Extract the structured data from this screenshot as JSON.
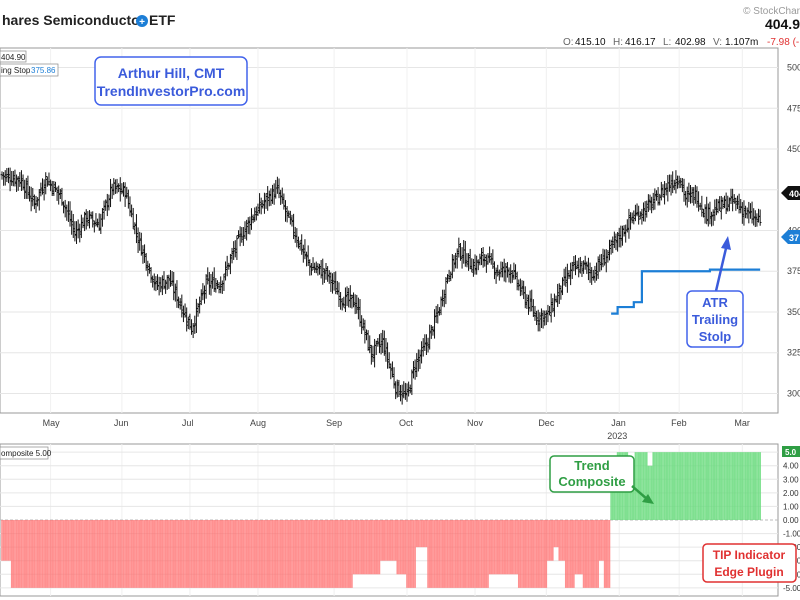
{
  "header": {
    "title": "hares Semiconductor ETF",
    "last_price": "404.9",
    "watermark": "© StockChar",
    "ohlc": {
      "o_label": "O:",
      "o": "415.10",
      "h_label": "H:",
      "h": "416.17",
      "l_label": "L:",
      "l": "402.98",
      "v_label": "V:",
      "v": "1.107m",
      "change": "-7.98 (-1"
    }
  },
  "colors": {
    "bars": "#111111",
    "trailing_stop": "#1c7ed6",
    "positive": "#69db7c",
    "negative": "#ff6b6b",
    "annotation_blue": "#3b5bdb",
    "annotation_green": "#2f9e44",
    "annotation_red": "#e03131",
    "change": "#e03131"
  },
  "legend": {
    "price_label": "404.90",
    "stop_label": "ing Stop",
    "stop_value": "375.86",
    "composite_label": "omposite 5.00"
  },
  "right_tags": {
    "price": "404",
    "stop": "37",
    "composite": "5.0"
  },
  "annotations": {
    "author_line1": "Arthur Hill, CMT",
    "author_line2": "TrendInvestorPro.com",
    "atr_line1": "ATR",
    "atr_line2": "Trailing",
    "atr_line3": "Stolp",
    "trend_line1": "Trend",
    "trend_line2": "Composite",
    "tip_line1": "TIP Indicator",
    "tip_line2": "Edge Plugin"
  },
  "chart_data": [
    {
      "type": "ohlc",
      "title": "hares Semiconductor ETF",
      "x_ticks": [
        "May",
        "Jun",
        "Jul",
        "Aug",
        "Sep",
        "Oct",
        "Nov",
        "Dec",
        "Jan",
        "Feb",
        "Mar"
      ],
      "year_label": "2023",
      "y_ticks": [
        300,
        325,
        350,
        375,
        400,
        425,
        450,
        475,
        500
      ],
      "y_tick_labels": [
        "300",
        "325",
        "350",
        "375",
        "400",
        "425",
        "450",
        "475",
        "500"
      ],
      "ylim": [
        288,
        512
      ],
      "grid": true,
      "close_path": [
        [
          0,
          434
        ],
        [
          12,
          431
        ],
        [
          20,
          416
        ],
        [
          27,
          432
        ],
        [
          37,
          420
        ],
        [
          45,
          398
        ],
        [
          52,
          408
        ],
        [
          60,
          404
        ],
        [
          68,
          426
        ],
        [
          76,
          424
        ],
        [
          84,
          395
        ],
        [
          95,
          366
        ],
        [
          103,
          370
        ],
        [
          117,
          340
        ],
        [
          126,
          367
        ],
        [
          135,
          368
        ],
        [
          146,
          394
        ],
        [
          154,
          408
        ],
        [
          164,
          420
        ],
        [
          170,
          425
        ],
        [
          176,
          409
        ],
        [
          190,
          378
        ],
        [
          200,
          374
        ],
        [
          210,
          358
        ],
        [
          218,
          356
        ],
        [
          228,
          324
        ],
        [
          235,
          332
        ],
        [
          243,
          304
        ],
        [
          250,
          298
        ],
        [
          255,
          318
        ],
        [
          262,
          330
        ],
        [
          270,
          352
        ],
        [
          275,
          372
        ],
        [
          282,
          388
        ],
        [
          291,
          378
        ],
        [
          298,
          384
        ],
        [
          306,
          375
        ],
        [
          314,
          376
        ],
        [
          322,
          360
        ],
        [
          330,
          347
        ],
        [
          337,
          348
        ],
        [
          344,
          363
        ],
        [
          352,
          376
        ],
        [
          360,
          378
        ],
        [
          364,
          373
        ],
        [
          372,
          383
        ],
        [
          381,
          396
        ],
        [
          389,
          408
        ],
        [
          397,
          413
        ],
        [
          404,
          419
        ],
        [
          411,
          428
        ],
        [
          418,
          433
        ],
        [
          422,
          420
        ],
        [
          428,
          422
        ],
        [
          435,
          410
        ],
        [
          444,
          415
        ],
        [
          452,
          418
        ],
        [
          460,
          410
        ],
        [
          468,
          405
        ]
      ],
      "trailing_stop": [
        [
          376,
          349
        ],
        [
          380,
          353
        ],
        [
          384,
          353
        ],
        [
          390,
          356
        ],
        [
          395,
          375
        ],
        [
          403,
          375
        ],
        [
          420,
          375
        ],
        [
          437,
          376
        ],
        [
          468,
          376
        ]
      ],
      "last_close": 404.9,
      "trailing_stop_value": 375.86
    },
    {
      "type": "bar",
      "title": "Trend Composite",
      "y_ticks": [
        -5,
        -4,
        -3,
        -2,
        -1,
        0,
        1,
        2,
        3,
        4,
        5
      ],
      "y_tick_labels": [
        "-5.00",
        "-4.00",
        "-3.00",
        "-2.00",
        "-1.00",
        "0.00",
        "1.00",
        "2.00",
        "3.00",
        "4.00",
        "5.00"
      ],
      "ylim": [
        -5.6,
        5.6
      ],
      "grid": true,
      "segments": [
        [
          0,
          5,
          -3
        ],
        [
          6,
          216,
          -5
        ],
        [
          217,
          233,
          -4
        ],
        [
          234,
          243,
          -3
        ],
        [
          244,
          249,
          -4
        ],
        [
          250,
          255,
          -5
        ],
        [
          256,
          262,
          -2
        ],
        [
          263,
          300,
          -5
        ],
        [
          301,
          318,
          -4
        ],
        [
          319,
          336,
          -5
        ],
        [
          337,
          340,
          -3
        ],
        [
          341,
          343,
          -2
        ],
        [
          344,
          347,
          -3
        ],
        [
          348,
          353,
          -5
        ],
        [
          354,
          358,
          -4
        ],
        [
          359,
          368,
          -5
        ],
        [
          369,
          371,
          -3
        ],
        [
          372,
          375,
          -5
        ],
        [
          376,
          379,
          3
        ],
        [
          380,
          386,
          5
        ],
        [
          387,
          390,
          4
        ],
        [
          391,
          398,
          5
        ],
        [
          399,
          401,
          4
        ],
        [
          402,
          468,
          5
        ]
      ]
    }
  ]
}
